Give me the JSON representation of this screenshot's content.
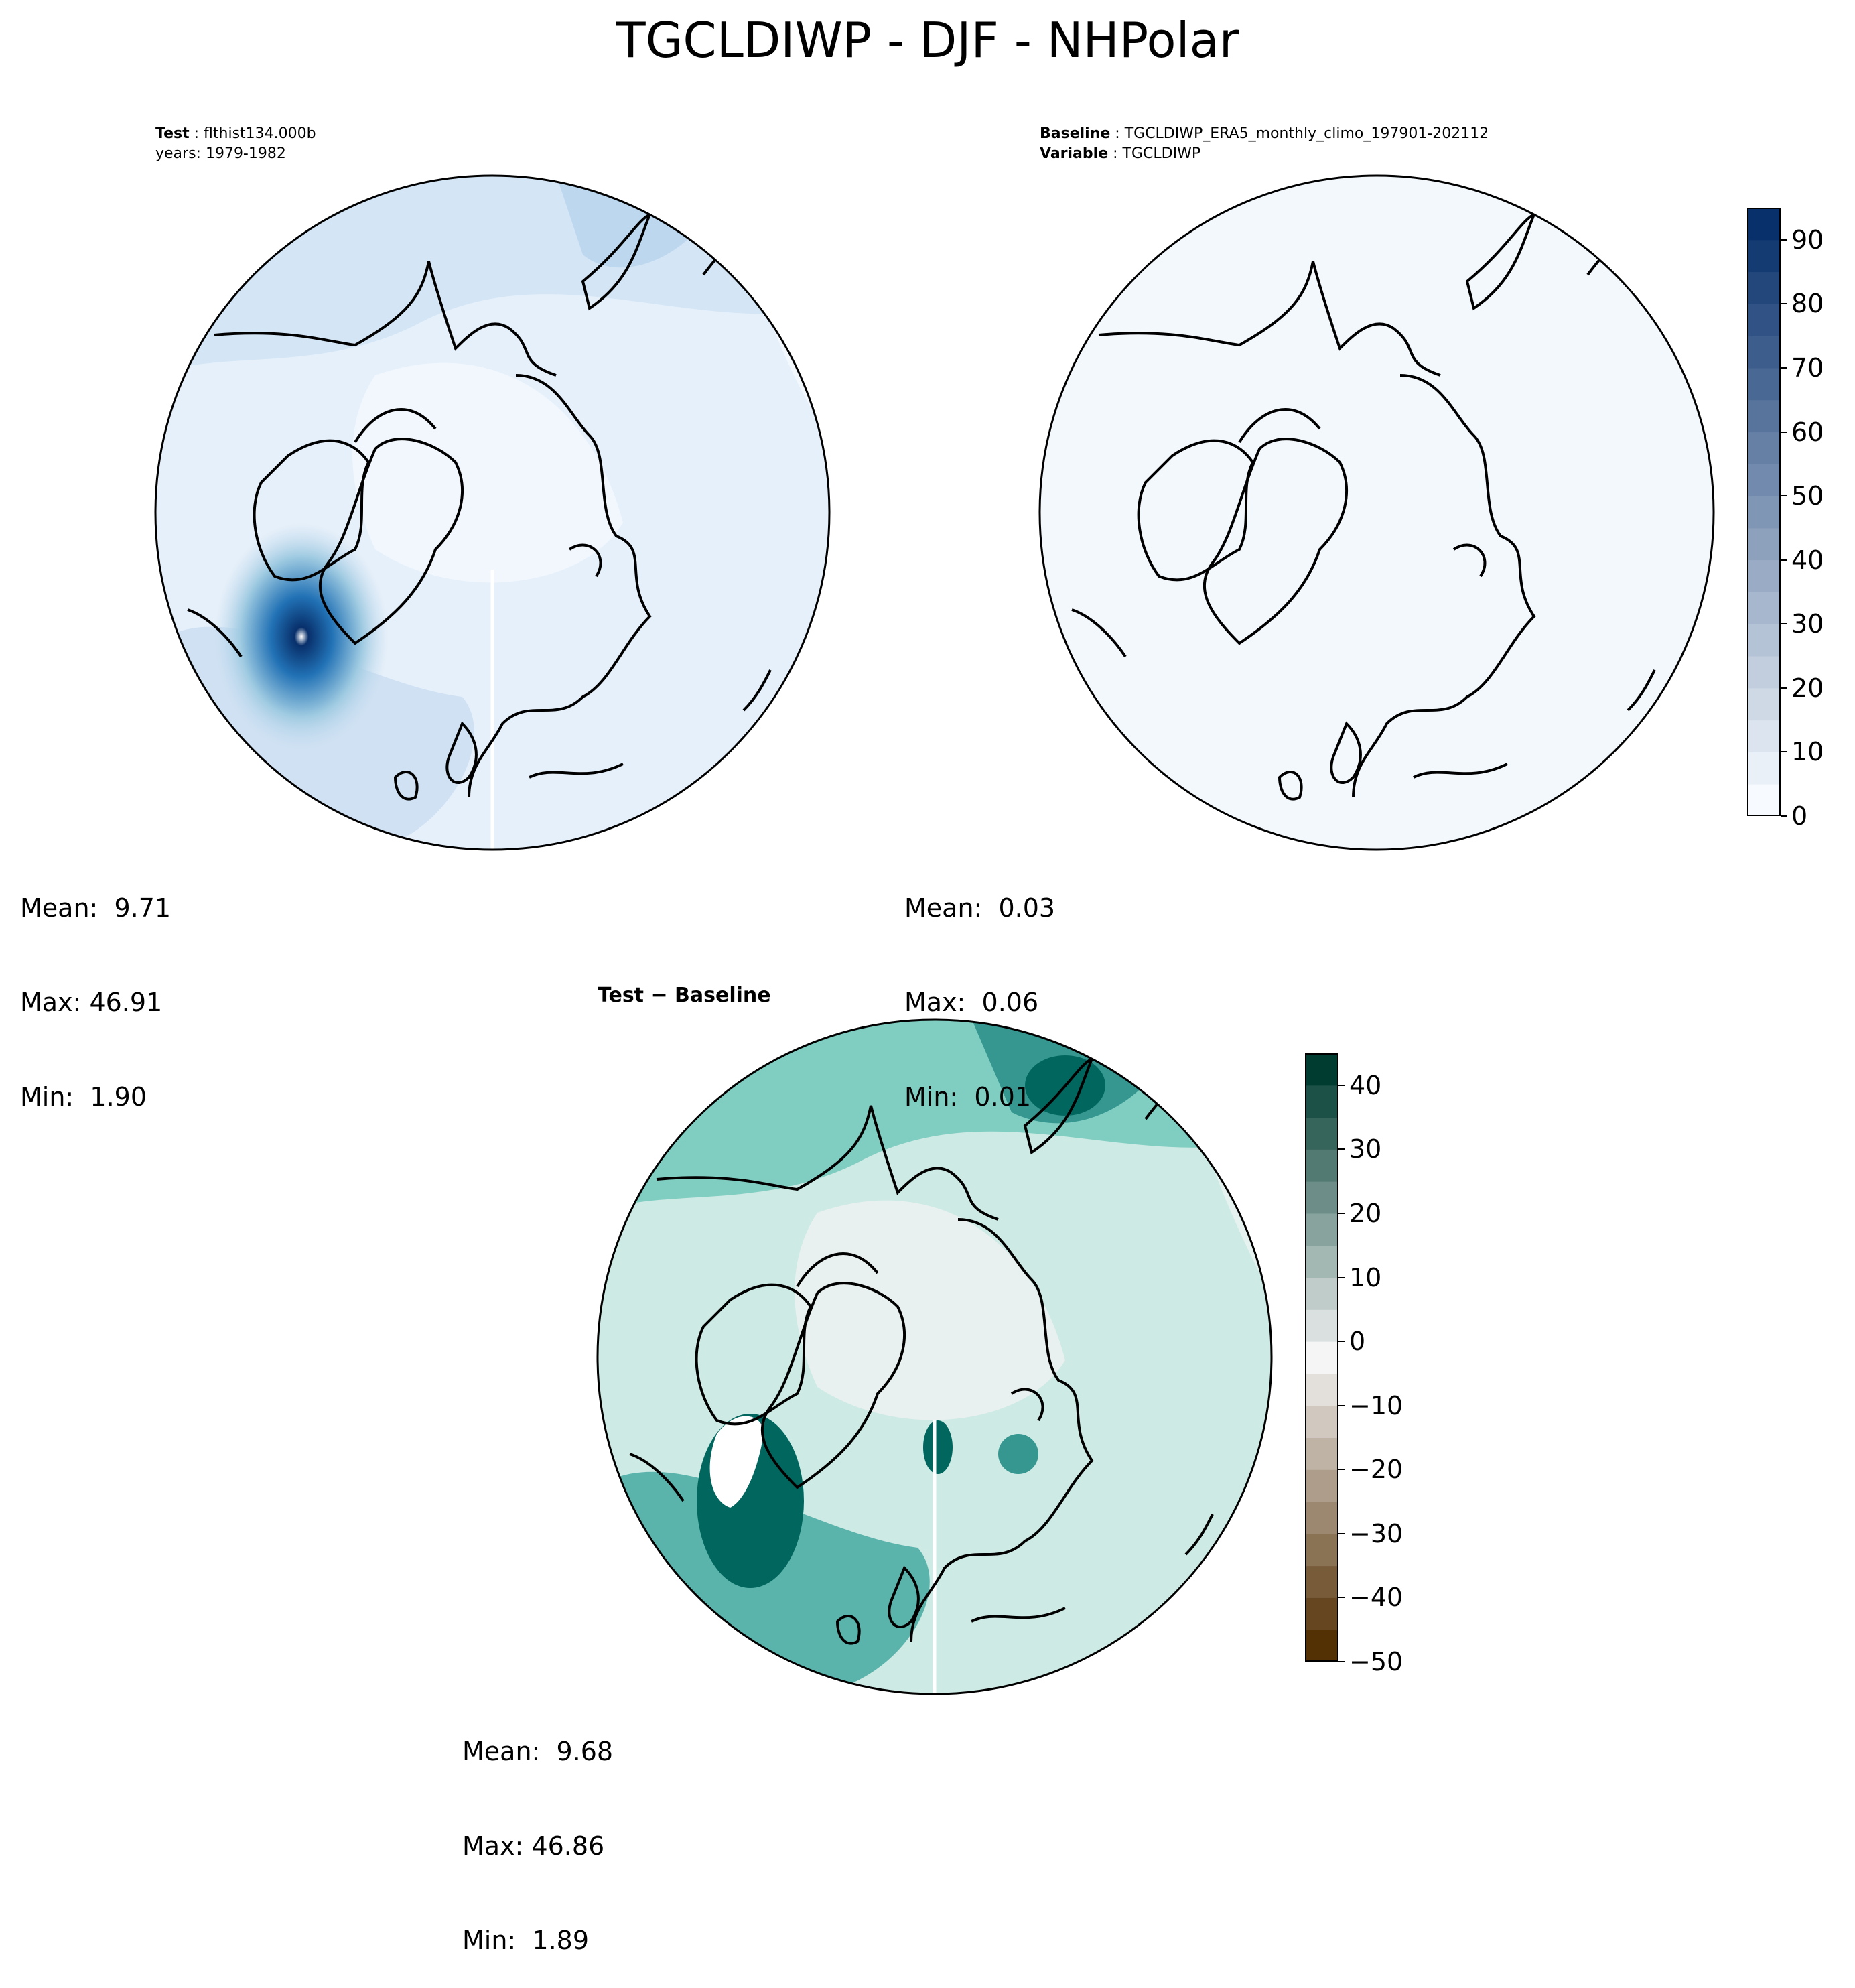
{
  "figure": {
    "title": "TGCLDIWP - DJF - NHPolar"
  },
  "panels": {
    "test": {
      "header_line1_key": "Test",
      "header_line1_value": "flthist134.000b",
      "header_line2": "years: 1979-1982",
      "stats": {
        "mean": "Mean:  9.71",
        "max": "Max: 46.91",
        "min": "Min:  1.90"
      }
    },
    "baseline": {
      "header_line1_key": "Baseline",
      "header_line1_value": "TGCLDIWP_ERA5_monthly_climo_197901-202112",
      "header_line2_key": "Variable",
      "header_line2_value": "TGCLDIWP",
      "stats": {
        "mean": "Mean:  0.03",
        "max": "Max:  0.06",
        "min": "Min:  0.01"
      }
    },
    "diff": {
      "title": "Test − Baseline",
      "stats": {
        "mean": "Mean:  9.68",
        "max": "Max: 46.86",
        "min": "Min:  1.89"
      }
    }
  },
  "colorbars": {
    "blues": {
      "ticks": [
        "0",
        "10",
        "20",
        "30",
        "40",
        "50",
        "60",
        "70",
        "80",
        "90"
      ],
      "range": [
        0,
        95
      ],
      "colors": [
        "#f7fbff",
        "#08306b"
      ]
    },
    "brbg": {
      "ticks": [
        "−50",
        "−40",
        "−30",
        "−20",
        "−10",
        "0",
        "10",
        "20",
        "30",
        "40"
      ],
      "range": [
        -50,
        45
      ],
      "colors": [
        "#543005",
        "#f5f5f5",
        "#003c30"
      ]
    }
  },
  "colors": {
    "ocean_test": "#e3eef9",
    "ocean_baseline": "#f3f8fd",
    "ocean_diff": "#cdeae4",
    "coast": "#000000",
    "diff_high": "#01665e",
    "test_high": "#08519c"
  }
}
